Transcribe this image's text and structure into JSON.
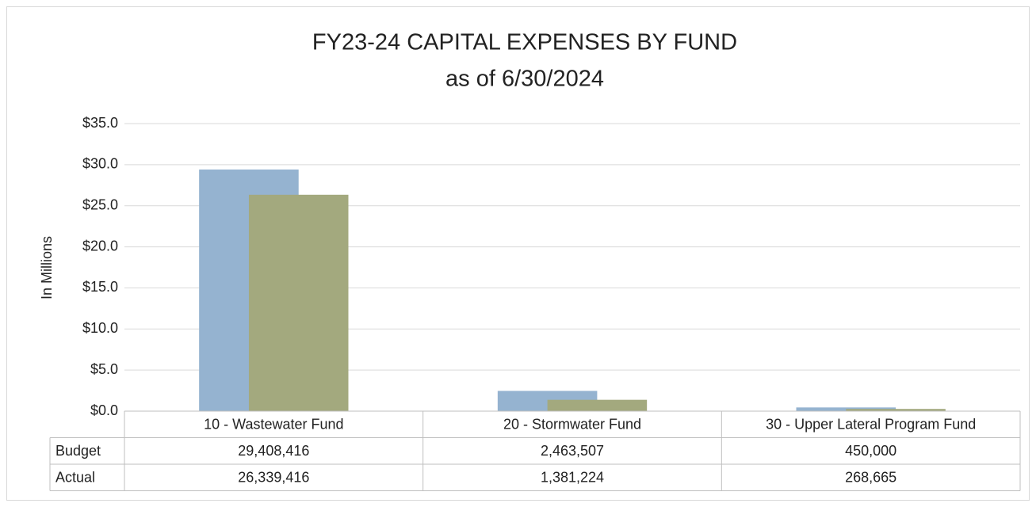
{
  "chart_data": {
    "type": "bar",
    "title": "FY23-24 CAPITAL EXPENSES BY FUND",
    "subtitle": "as of 6/30/2024",
    "y_label": "In Millions",
    "categories": [
      "10 - Wastewater Fund",
      "20 - Stormwater Fund",
      "30 - Upper Lateral Program Fund"
    ],
    "series": [
      {
        "name": "Budget",
        "color": "#95b3d0",
        "values": [
          29.408416,
          2.463507,
          0.45
        ],
        "value_labels": [
          "29,408,416",
          "2,463,507",
          "450,000"
        ]
      },
      {
        "name": "Actual",
        "color": "#a3a97e",
        "values": [
          26.339416,
          1.381224,
          0.268665
        ],
        "value_labels": [
          "26,339,416",
          "1,381,224",
          "268,665"
        ]
      }
    ],
    "ylim": [
      0,
      35
    ],
    "yticks": [
      {
        "value": 0,
        "label": "$0.0"
      },
      {
        "value": 5,
        "label": "$5.0"
      },
      {
        "value": 10,
        "label": "$10.0"
      },
      {
        "value": 15,
        "label": "$15.0"
      },
      {
        "value": 20,
        "label": "$20.0"
      },
      {
        "value": 25,
        "label": "$25.0"
      },
      {
        "value": 30,
        "label": "$30.0"
      },
      {
        "value": 35,
        "label": "$35.0"
      }
    ],
    "grid": true
  }
}
